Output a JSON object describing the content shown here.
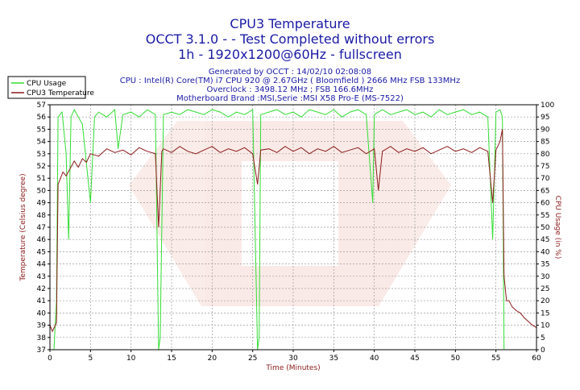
{
  "chart_data": {
    "type": "line",
    "title": "CPU3 Temperature",
    "subtitle1": "OCCT 3.1.0 -  - Test Completed without errors",
    "subtitle2": "1h - 1920x1200@60Hz - fullscreen",
    "info": [
      "Generated by OCCT : 14/02/10 02:08:08",
      "CPU : Intel(R) Core(TM) i7 CPU 920 @ 2.67GHz ( Bloomfield ) 2666 MHz FSB 133MHz",
      "Overclock : 3498.12 MHz ; FSB 166.6MHz",
      "Motherboard Brand :MSI,Serie :MSI X58 Pro-E (MS-7522)"
    ],
    "xlabel": "Time (Minutes)",
    "ylabel_left": "Temperature (Celsius degree)",
    "ylabel_right": "CPU Usage (in %)",
    "xlim": [
      0,
      60
    ],
    "ylim_left": [
      37,
      57
    ],
    "ylim_right": [
      0,
      100
    ],
    "xticks": [
      0,
      5,
      10,
      15,
      20,
      25,
      30,
      35,
      40,
      45,
      50,
      55,
      60
    ],
    "yticks_left": [
      37,
      38,
      39,
      40,
      41,
      42,
      43,
      44,
      45,
      46,
      47,
      48,
      49,
      50,
      51,
      52,
      53,
      54,
      55,
      56,
      57
    ],
    "yticks_right": [
      0,
      5,
      10,
      15,
      20,
      25,
      30,
      35,
      40,
      45,
      50,
      55,
      60,
      65,
      70,
      75,
      80,
      85,
      90,
      95,
      100
    ],
    "grid": true,
    "legend_position": "top-left",
    "series": [
      {
        "name": "CPU Usage",
        "axis": "right",
        "color": "#33dd33",
        "x": [
          0,
          0.5,
          0.8,
          1.0,
          1.5,
          2.0,
          2.3,
          2.6,
          3.0,
          4.0,
          5.0,
          5.5,
          6.0,
          7.0,
          8.0,
          8.4,
          9.0,
          10.0,
          11.0,
          12.0,
          13.0,
          13.4,
          13.6,
          14.0,
          15.0,
          16.0,
          17.0,
          18.0,
          19.0,
          20.0,
          21.0,
          22.0,
          23.0,
          24.0,
          25.0,
          25.6,
          25.8,
          26.0,
          27.0,
          28.0,
          29.0,
          30.0,
          31.0,
          32.0,
          33.0,
          34.0,
          35.0,
          36.0,
          37.0,
          38.0,
          39.0,
          39.8,
          40.0,
          40.5,
          41.0,
          42.0,
          43.0,
          44.0,
          45.0,
          46.0,
          47.0,
          48.0,
          49.0,
          50.0,
          51.0,
          52.0,
          53.0,
          54.0,
          54.6,
          55.0,
          55.5,
          55.8,
          56.0,
          57.0,
          58.0,
          59.0,
          60.0
        ],
        "values": [
          0,
          0,
          20,
          95,
          97,
          80,
          45,
          95,
          98,
          92,
          60,
          95,
          97,
          95,
          98,
          82,
          96,
          97,
          95,
          98,
          96,
          0,
          5,
          96,
          97,
          96,
          98,
          97,
          96,
          98,
          97,
          95,
          97,
          96,
          98,
          0,
          5,
          96,
          97,
          98,
          96,
          97,
          95,
          98,
          97,
          96,
          98,
          95,
          97,
          98,
          96,
          60,
          96,
          97,
          98,
          96,
          97,
          98,
          96,
          97,
          95,
          98,
          96,
          97,
          98,
          96,
          97,
          95,
          45,
          97,
          98,
          95,
          0,
          0,
          0,
          0,
          0
        ]
      },
      {
        "name": "CPU3 Temperature",
        "axis": "left",
        "color": "#8b1a1a",
        "x": [
          0,
          0.3,
          0.6,
          0.8,
          1.0,
          1.3,
          1.6,
          2.0,
          2.5,
          3.0,
          3.5,
          4.0,
          4.5,
          5.0,
          6.0,
          7.0,
          8.0,
          9.0,
          10.0,
          11.0,
          12.0,
          13.0,
          13.4,
          13.8,
          14.0,
          15.0,
          16.0,
          17.0,
          18.0,
          19.0,
          20.0,
          21.0,
          22.0,
          23.0,
          24.0,
          25.0,
          25.6,
          26.0,
          27.0,
          28.0,
          29.0,
          30.0,
          31.0,
          32.0,
          33.0,
          34.0,
          35.0,
          36.0,
          37.0,
          38.0,
          39.0,
          40.0,
          40.5,
          41.0,
          42.0,
          43.0,
          44.0,
          45.0,
          46.0,
          47.0,
          48.0,
          49.0,
          50.0,
          51.0,
          52.0,
          53.0,
          54.0,
          54.6,
          55.0,
          55.5,
          55.8,
          56.0,
          56.3,
          56.6,
          57.0,
          57.5,
          58.0,
          58.5,
          59.0,
          59.5,
          60.0
        ],
        "values": [
          39.0,
          38.5,
          38.9,
          39.2,
          50.5,
          51.0,
          51.5,
          51.2,
          51.8,
          52.4,
          51.9,
          52.6,
          52.3,
          53.0,
          52.8,
          53.4,
          53.1,
          53.3,
          52.9,
          53.5,
          53.2,
          53.0,
          47.0,
          53.2,
          53.4,
          53.1,
          53.6,
          53.2,
          53.0,
          53.3,
          53.6,
          53.1,
          53.4,
          53.2,
          53.5,
          53.0,
          50.5,
          53.3,
          53.4,
          53.1,
          53.6,
          53.2,
          53.5,
          53.0,
          53.4,
          53.2,
          53.6,
          53.1,
          53.3,
          53.5,
          53.0,
          53.4,
          50.0,
          53.2,
          53.6,
          53.1,
          53.4,
          53.2,
          53.5,
          53.0,
          53.3,
          53.6,
          53.2,
          53.4,
          53.1,
          53.5,
          53.2,
          49.0,
          53.3,
          54.0,
          55.0,
          43.0,
          41.0,
          41.0,
          40.5,
          40.2,
          40.0,
          39.6,
          39.3,
          39.0,
          38.8
        ]
      }
    ]
  }
}
